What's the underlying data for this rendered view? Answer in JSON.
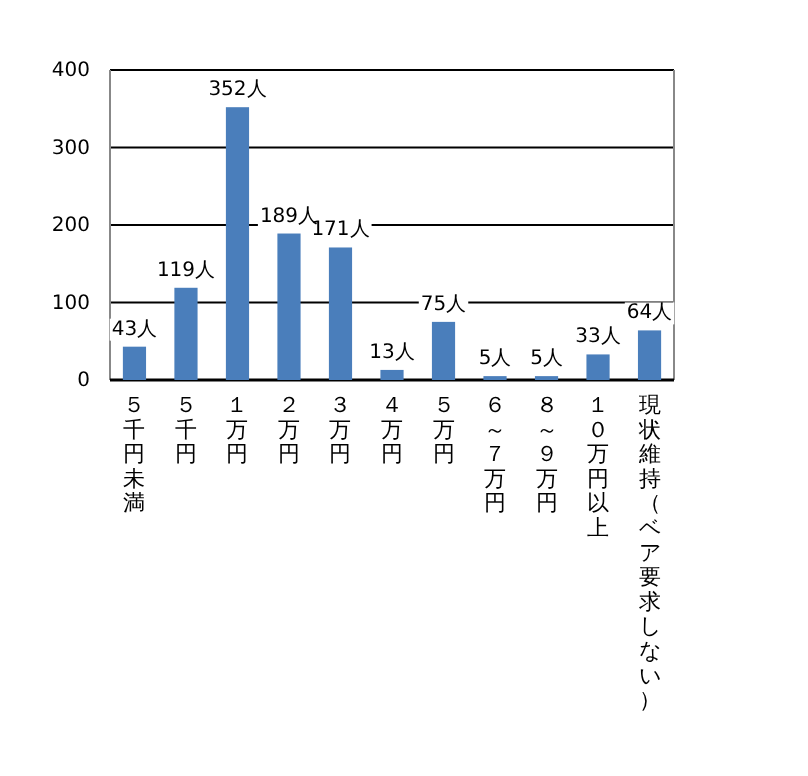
{
  "chart_data": {
    "type": "bar",
    "categories": [
      "５千円未満",
      "５千円",
      "１万円",
      "２万円",
      "３万円",
      "４万円",
      "５万円",
      "６～７万円",
      "８～９万円",
      "１０万円以上",
      "現状維持（ベア要求しない）"
    ],
    "values": [
      43,
      119,
      352,
      189,
      171,
      13,
      75,
      5,
      5,
      33,
      64
    ],
    "value_labels": [
      "43人",
      "119人",
      "352人",
      "189人",
      "171人",
      "13人",
      "75人",
      "5人",
      "5人",
      "33人",
      "64人"
    ],
    "color": "#4a7ebb",
    "ylim": [
      0,
      400
    ],
    "yticks": [
      0,
      100,
      200,
      300,
      400
    ],
    "grid": "y"
  }
}
